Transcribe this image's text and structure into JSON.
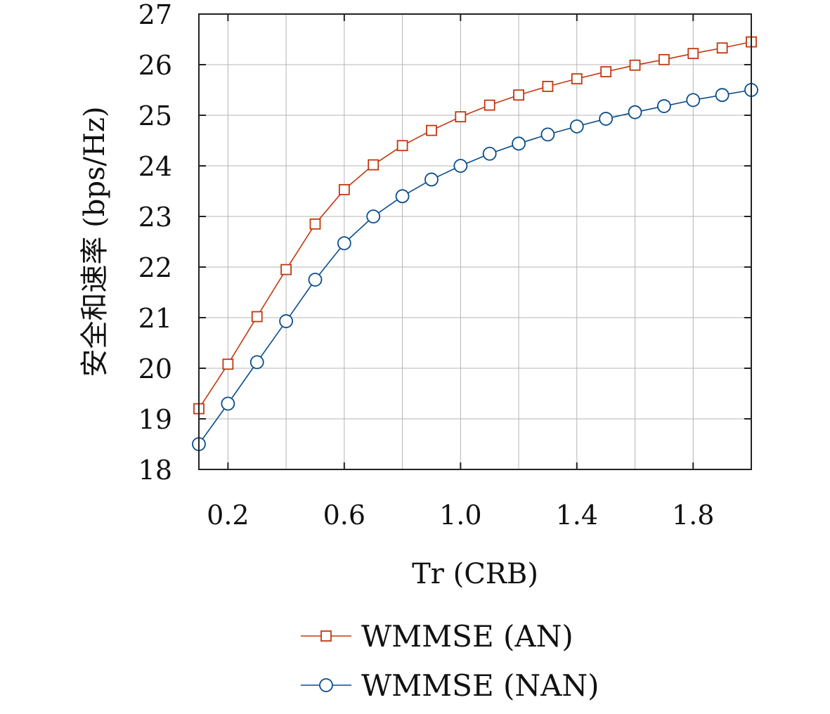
{
  "chart_data": {
    "type": "line",
    "xlabel": "Tr (CRB)",
    "ylabel": "安全和速率 (bps/Hz)",
    "xlim": [
      0.1,
      2.0
    ],
    "ylim": [
      18,
      27
    ],
    "xticks": [
      0.2,
      0.6,
      1.0,
      1.4,
      1.8
    ],
    "xtick_labels": [
      "0.2",
      "0.6",
      "1.0",
      "1.4",
      "1.8"
    ],
    "yticks": [
      18,
      19,
      20,
      21,
      22,
      23,
      24,
      25,
      26,
      27
    ],
    "ytick_labels": [
      "18",
      "19",
      "20",
      "21",
      "22",
      "23",
      "24",
      "25",
      "26",
      "27"
    ],
    "grid": true,
    "legend_position": "bottom",
    "x": [
      0.1,
      0.2,
      0.3,
      0.4,
      0.5,
      0.6,
      0.7,
      0.8,
      0.9,
      1.0,
      1.1,
      1.2,
      1.3,
      1.4,
      1.5,
      1.6,
      1.7,
      1.8,
      1.9,
      2.0
    ],
    "series": [
      {
        "name": "WMMSE (AN)",
        "color": "#c0380e",
        "marker": "square",
        "values": [
          19.2,
          20.08,
          21.02,
          21.95,
          22.85,
          23.53,
          24.02,
          24.4,
          24.7,
          24.97,
          25.2,
          25.4,
          25.57,
          25.72,
          25.86,
          25.99,
          26.1,
          26.22,
          26.33,
          26.45
        ]
      },
      {
        "name": "WMMSE (NAN)",
        "color": "#0a4d8c",
        "marker": "circle",
        "values": [
          18.5,
          19.3,
          20.12,
          20.93,
          21.75,
          22.47,
          23.0,
          23.4,
          23.73,
          24.0,
          24.24,
          24.44,
          24.62,
          24.78,
          24.93,
          25.06,
          25.18,
          25.3,
          25.4,
          25.5
        ]
      }
    ]
  }
}
